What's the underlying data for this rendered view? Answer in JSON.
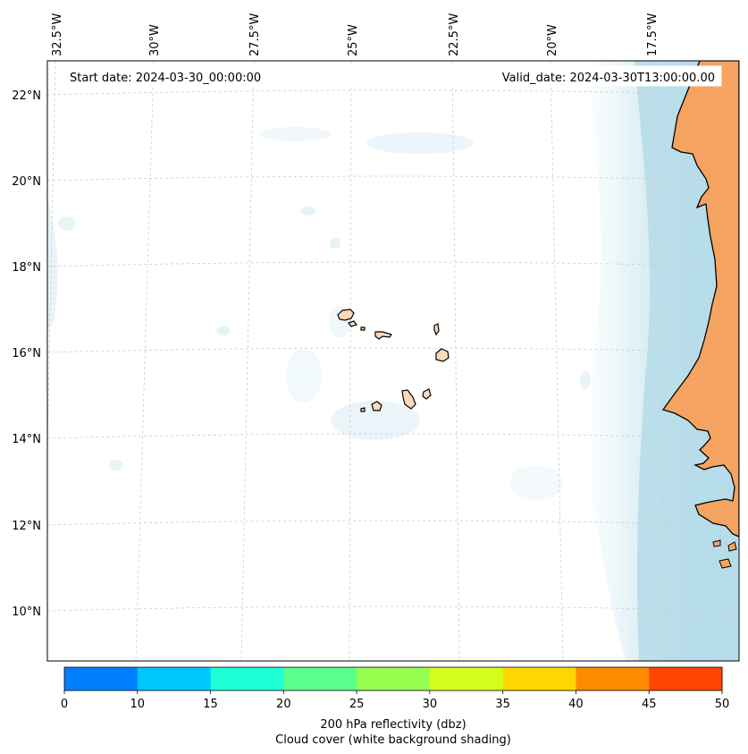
{
  "map": {
    "header": {
      "start_date": "Start date: 2024-03-30_00:00:00",
      "valid_date": "Valid_date: 2024-03-30T13:00:00.00"
    },
    "lon_labels": [
      "32.5°W",
      "30°W",
      "27.5°W",
      "25°W",
      "22.5°W",
      "20°W",
      "17.5°W"
    ],
    "lat_labels": [
      "22°N",
      "20°N",
      "18°N",
      "16°N",
      "14°N",
      "12°N",
      "10°N"
    ]
  },
  "colorbar": {
    "ticks": [
      "0",
      "10",
      "15",
      "20",
      "25",
      "30",
      "35",
      "40",
      "45",
      "50"
    ],
    "colors": [
      "#0080ff",
      "#00c8ff",
      "#1effd8",
      "#5aff8c",
      "#96ff50",
      "#d4ff1e",
      "#ffd700",
      "#ff8c00",
      "#ff4500"
    ],
    "label_line1": "200 hPa reflectivity (dbz)",
    "label_line2": "Cloud cover (white background shading)"
  },
  "colors": {
    "land": "#f4a460",
    "island_fill": "#fcd9b8",
    "cloud": "#add8e6",
    "grid": "#cccccc"
  }
}
